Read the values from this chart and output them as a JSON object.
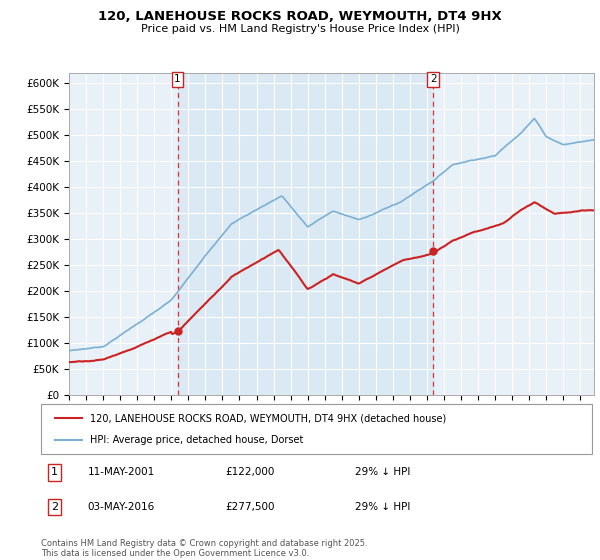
{
  "title": "120, LANEHOUSE ROCKS ROAD, WEYMOUTH, DT4 9HX",
  "subtitle": "Price paid vs. HM Land Registry's House Price Index (HPI)",
  "ylim": [
    0,
    620000
  ],
  "yticks": [
    0,
    50000,
    100000,
    150000,
    200000,
    250000,
    300000,
    350000,
    400000,
    450000,
    500000,
    550000,
    600000
  ],
  "ytick_labels": [
    "£0",
    "£50K",
    "£100K",
    "£150K",
    "£200K",
    "£250K",
    "£300K",
    "£350K",
    "£400K",
    "£450K",
    "£500K",
    "£550K",
    "£600K"
  ],
  "hpi_color": "#7ab0d4",
  "price_color": "#cc2222",
  "sale1_yr": 2001.37,
  "sale2_yr": 2016.37,
  "sale1_price_val": 122000,
  "sale2_price_val": 277500,
  "sale1_date": "11-MAY-2001",
  "sale1_price": "£122,000",
  "sale1_note": "29% ↓ HPI",
  "sale2_date": "03-MAY-2016",
  "sale2_price": "£277,500",
  "sale2_note": "29% ↓ HPI",
  "legend_line1": "120, LANEHOUSE ROCKS ROAD, WEYMOUTH, DT4 9HX (detached house)",
  "legend_line2": "HPI: Average price, detached house, Dorset",
  "footnote": "Contains HM Land Registry data © Crown copyright and database right 2025.\nThis data is licensed under the Open Government Licence v3.0.",
  "bg_color": "#e8f0f8",
  "grid_color": "#ffffff",
  "shade_color": "#d0e4f4",
  "xlim_left": 1995.0,
  "xlim_right": 2025.8
}
